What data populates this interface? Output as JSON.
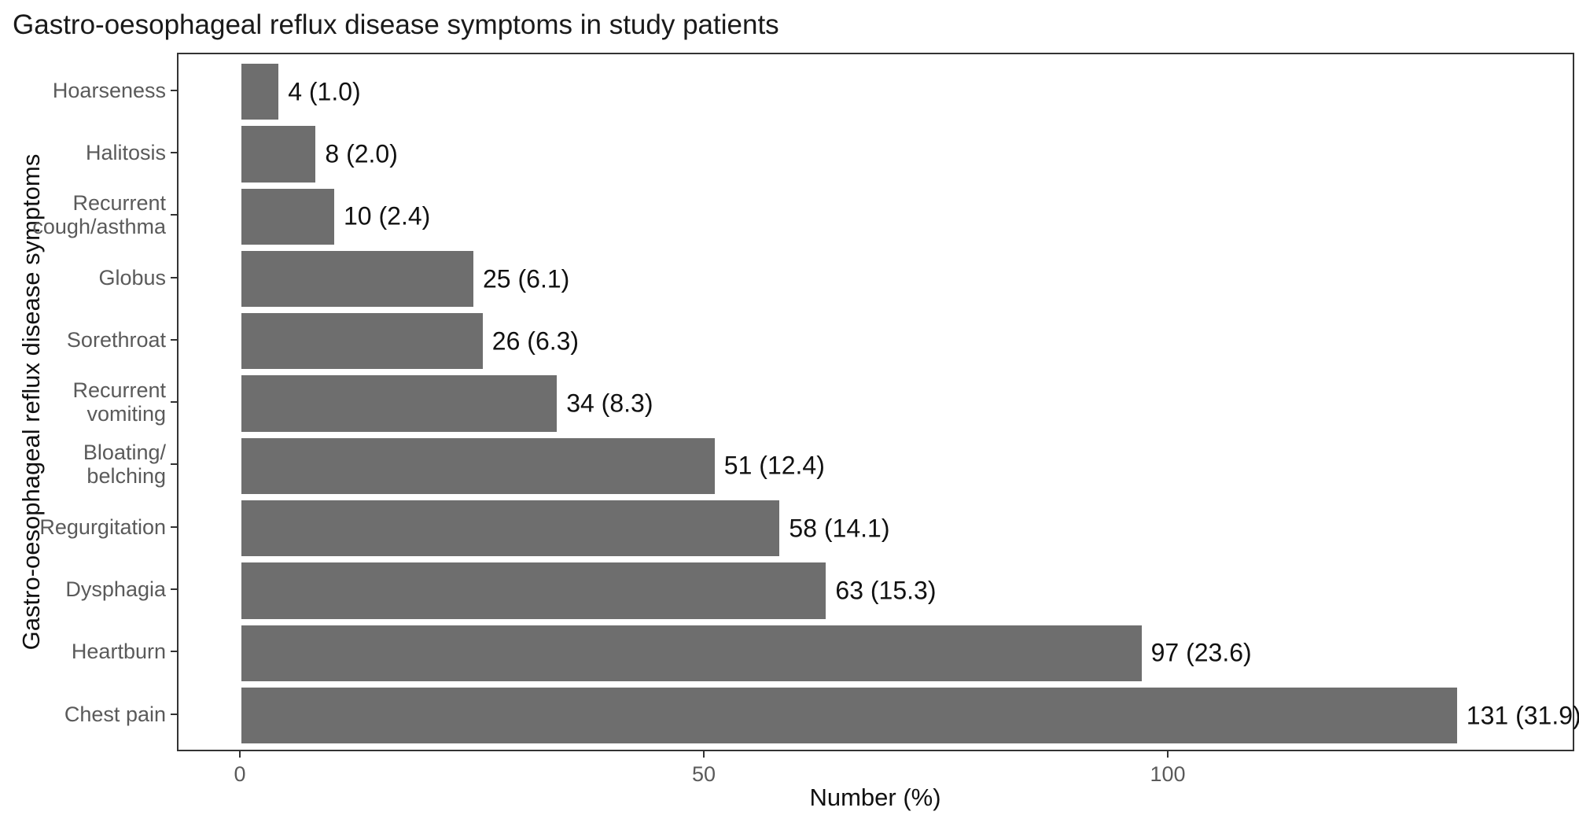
{
  "chart_data": {
    "type": "bar",
    "orientation": "horizontal",
    "title": "Gastro-oesophageal reflux disease symptoms in study patients",
    "xlabel": "Number (%)",
    "ylabel": "Gastro-oesophageal reflux disease symptoms",
    "categories": [
      {
        "label_lines": [
          "Hoarseness"
        ],
        "n": 4,
        "pct": 1.0,
        "annotation": "4 (1.0)"
      },
      {
        "label_lines": [
          "Halitosis"
        ],
        "n": 8,
        "pct": 2.0,
        "annotation": "8 (2.0)"
      },
      {
        "label_lines": [
          "Recurrent",
          "cough/asthma"
        ],
        "n": 10,
        "pct": 2.4,
        "annotation": "10 (2.4)"
      },
      {
        "label_lines": [
          "Globus"
        ],
        "n": 25,
        "pct": 6.1,
        "annotation": "25 (6.1)"
      },
      {
        "label_lines": [
          "Sorethroat"
        ],
        "n": 26,
        "pct": 6.3,
        "annotation": "26 (6.3)"
      },
      {
        "label_lines": [
          "Recurrent",
          "vomiting"
        ],
        "n": 34,
        "pct": 8.3,
        "annotation": "34 (8.3)"
      },
      {
        "label_lines": [
          "Bloating/",
          "belching"
        ],
        "n": 51,
        "pct": 12.4,
        "annotation": "51 (12.4)"
      },
      {
        "label_lines": [
          "Regurgitation"
        ],
        "n": 58,
        "pct": 14.1,
        "annotation": "58 (14.1)"
      },
      {
        "label_lines": [
          "Dysphagia"
        ],
        "n": 63,
        "pct": 15.3,
        "annotation": "63 (15.3)"
      },
      {
        "label_lines": [
          "Heartburn"
        ],
        "n": 97,
        "pct": 23.6,
        "annotation": "97 (23.6)"
      },
      {
        "label_lines": [
          "Chest pain"
        ],
        "n": 131,
        "pct": 31.9,
        "annotation": "131 (31.9)"
      }
    ],
    "x_ticks": [
      0,
      50,
      100
    ],
    "xlim": [
      -6.8,
      143.5
    ],
    "grid": false,
    "legend": false,
    "colors": {
      "bar_fill": "#6e6e6e",
      "panel_border": "#333333",
      "axis_text": "#5a5a5a",
      "title_text": "#1a1a1a",
      "label_text": "#111111",
      "background": "#ffffff"
    }
  }
}
